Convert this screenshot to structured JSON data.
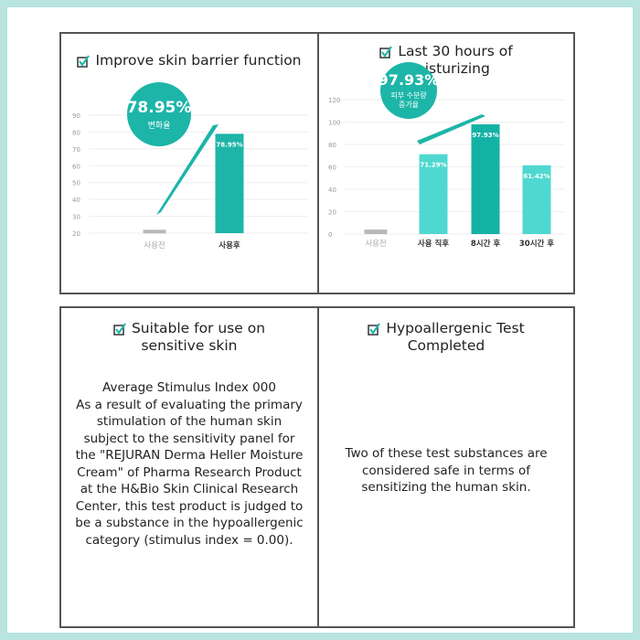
{
  "colors": {
    "accent": "#1db5a8",
    "light_bar": "#4fd8d0",
    "dark_bar": "#14b2a5",
    "gray_bar": "#b8b8b8",
    "border": "#b9e4df"
  },
  "panels": [
    {
      "title": "Improve skin barrier function",
      "icon": "checkbox-checked-icon"
    },
    {
      "title_lines": [
        "Last 30 hours of",
        "moisturizing"
      ],
      "icon": "checkbox-checked-icon"
    },
    {
      "title_lines": [
        "Suitable for use on",
        "sensitive skin"
      ],
      "icon": "checkbox-checked-icon",
      "body": [
        "Average Stimulus Index 000",
        "As a result of evaluating the primary",
        "stimulation of the human skin",
        "subject to the sensitivity panel for",
        "the \"REJURAN Derma Heller Moisture",
        "Cream\" of Pharma Research Product",
        "at the H&Bio Skin Clinical Research",
        "Center, this test product is judged to",
        "be a substance in the hypoallergenic",
        "category (stimulus index = 0.00)."
      ]
    },
    {
      "title_lines": [
        "Hypoallergenic Test",
        "Completed"
      ],
      "icon": "checkbox-checked-icon",
      "body": [
        "Two of these test substances are",
        "considered safe in terms of",
        "sensitizing the human skin."
      ]
    }
  ],
  "chart_data": [
    {
      "type": "bar",
      "ylim": [
        20,
        90
      ],
      "yticks": [
        20,
        30,
        40,
        50,
        60,
        70,
        80,
        90
      ],
      "grid": true,
      "categories": [
        "사용전",
        "사용후"
      ],
      "values": [
        22,
        78.95
      ],
      "data_labels": [
        "",
        "78.95%"
      ],
      "callout": {
        "value": "78.95%",
        "label": "변화율"
      }
    },
    {
      "type": "bar",
      "ylim": [
        0,
        120
      ],
      "yticks": [
        0,
        20,
        40,
        60,
        80,
        100,
        120
      ],
      "grid": true,
      "categories": [
        "사용전",
        "사용 직후",
        "8시간 후",
        "30시간 후"
      ],
      "values": [
        4,
        71.29,
        97.93,
        61.42
      ],
      "data_labels": [
        "",
        "71.29%",
        "97.93%",
        "61.42%"
      ],
      "callout": {
        "value": "97.93%",
        "label_lines": [
          "피부 수분량",
          "증가율"
        ]
      }
    }
  ]
}
